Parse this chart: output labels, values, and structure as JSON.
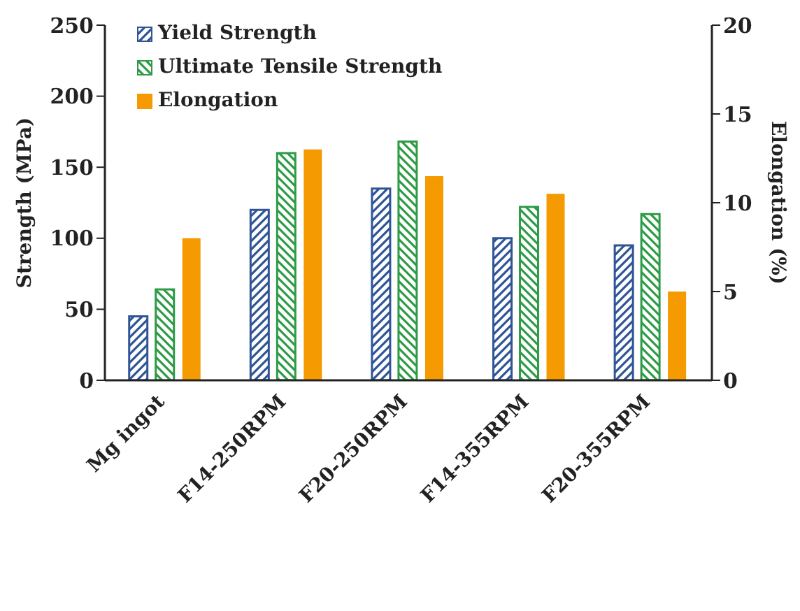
{
  "chart_data": {
    "type": "bar",
    "ylabel": "Strength (MPa)",
    "y2label": "Elongation (%)",
    "categories": [
      "Mg ingot",
      "F14-250RPM",
      "F20-250RPM",
      "F14-355RPM",
      "F20-355RPM"
    ],
    "series": [
      {
        "name": "Yield Strength",
        "color": "#2f5597",
        "values": [
          45,
          120,
          135,
          100,
          95
        ]
      },
      {
        "name": "Ultimate Tensile Strength",
        "color": "#2e9b46",
        "values": [
          64,
          160,
          168,
          122,
          117
        ]
      },
      {
        "name": "Elongation",
        "color": "#f59a00",
        "values": [
          8,
          13,
          11.5,
          10.5,
          5
        ],
        "axis": "y2"
      }
    ],
    "ylim": [
      0,
      250
    ],
    "yticks": [
      0,
      50,
      100,
      150,
      200,
      250
    ],
    "y2lim": [
      0,
      20
    ],
    "y2ticks": [
      0,
      5,
      10,
      15,
      20
    ],
    "grid": false,
    "legend": "top left"
  }
}
